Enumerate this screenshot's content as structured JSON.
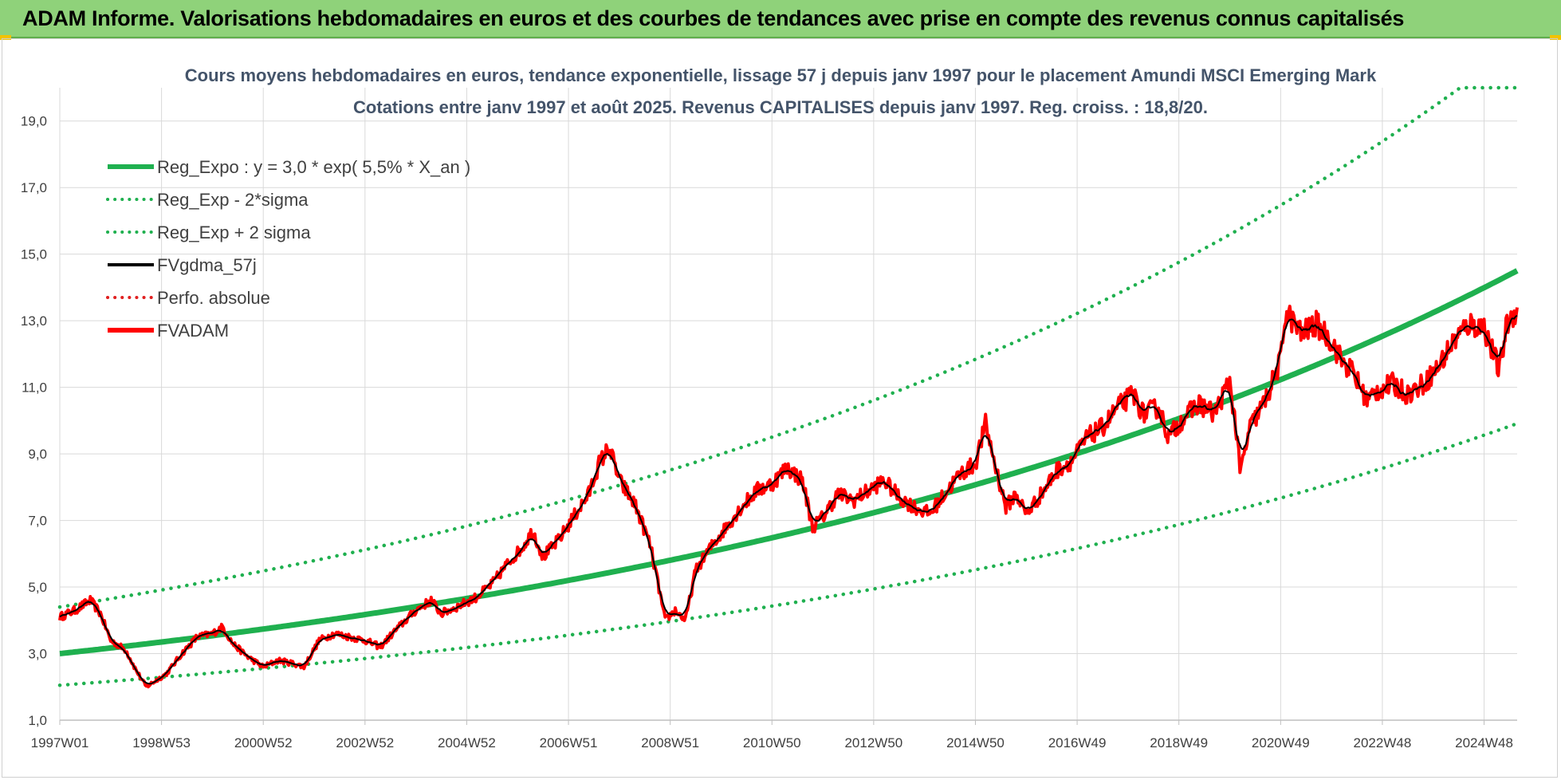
{
  "header": {
    "title": "ADAM Informe. Valorisations hebdomadaires en euros et des courbes de tendances avec prise en compte des revenus connus capitalisés"
  },
  "colors": {
    "banner": "#8fd27a",
    "reg_expo": "#1fb04f",
    "fvgdma": "#000000",
    "fvadam": "#ff0000",
    "perfo": "#e02020",
    "grid": "#d9d9d9"
  },
  "chart_data": {
    "type": "line",
    "title": "Cours moyens hebdomadaires en euros, tendance exponentielle, lissage 57 j depuis janv 1997 pour le placement Amundi MSCI Emerging Mark",
    "subtitle": "Cotations entre janv 1997 et août 2025. Revenus CAPITALISES depuis janv 1997. Reg. croiss. : 18,8/20.",
    "x_range": [
      1997.0,
      2025.65
    ],
    "ylim": [
      1.0,
      20.0
    ],
    "y_ticks": [
      "1,0",
      "3,0",
      "5,0",
      "7,0",
      "9,0",
      "11,0",
      "13,0",
      "15,0",
      "17,0",
      "19,0"
    ],
    "x_ticks": [
      {
        "label": "1997W01",
        "x": 1997.0
      },
      {
        "label": "1998W53",
        "x": 1999.0
      },
      {
        "label": "2000W52",
        "x": 2001.0
      },
      {
        "label": "2002W52",
        "x": 2003.0
      },
      {
        "label": "2004W52",
        "x": 2005.0
      },
      {
        "label": "2006W51",
        "x": 2007.0
      },
      {
        "label": "2008W51",
        "x": 2009.0
      },
      {
        "label": "2010W50",
        "x": 2011.0
      },
      {
        "label": "2012W50",
        "x": 2013.0
      },
      {
        "label": "2014W50",
        "x": 2015.0
      },
      {
        "label": "2016W49",
        "x": 2017.0
      },
      {
        "label": "2018W49",
        "x": 2019.0
      },
      {
        "label": "2020W49",
        "x": 2021.0
      },
      {
        "label": "2022W48",
        "x": 2023.0
      },
      {
        "label": "2024W48",
        "x": 2025.0
      }
    ],
    "legend_position": "top-left",
    "grid": true,
    "series": [
      {
        "name": "Reg_Expo : y = 3,0 * exp( 5,5% *  X_an )",
        "style": "solid-thick",
        "color": "#1fb04f",
        "a": 3.0,
        "rate": 0.055
      },
      {
        "name": "Reg_Exp - 2*sigma",
        "style": "dotted",
        "color": "#1fb04f",
        "a": 2.05,
        "rate": 0.055
      },
      {
        "name": "Reg_Exp + 2 sigma",
        "style": "dotted",
        "color": "#1fb04f",
        "a": 4.4,
        "rate": 0.055,
        "cap": 20.0
      },
      {
        "name": "FVgdma_57j",
        "style": "solid",
        "color": "#000000"
      },
      {
        "name": "Perfo. absolue",
        "style": "dotted",
        "color": "#e02020"
      },
      {
        "name": "FVADAM",
        "style": "solid-thick",
        "color": "#ff0000"
      }
    ],
    "fvadam_points": [
      [
        1997.0,
        4.1
      ],
      [
        1997.3,
        4.3
      ],
      [
        1997.6,
        4.6
      ],
      [
        1997.8,
        4.2
      ],
      [
        1998.0,
        3.4
      ],
      [
        1998.3,
        3.1
      ],
      [
        1998.5,
        2.5
      ],
      [
        1998.7,
        2.0
      ],
      [
        1998.9,
        2.2
      ],
      [
        1999.1,
        2.4
      ],
      [
        1999.4,
        3.0
      ],
      [
        1999.7,
        3.5
      ],
      [
        2000.0,
        3.6
      ],
      [
        2000.2,
        3.8
      ],
      [
        2000.4,
        3.3
      ],
      [
        2000.7,
        2.9
      ],
      [
        2001.0,
        2.6
      ],
      [
        2001.3,
        2.8
      ],
      [
        2001.6,
        2.7
      ],
      [
        2001.8,
        2.6
      ],
      [
        2002.1,
        3.4
      ],
      [
        2002.4,
        3.6
      ],
      [
        2002.7,
        3.5
      ],
      [
        2003.0,
        3.4
      ],
      [
        2003.3,
        3.2
      ],
      [
        2003.6,
        3.7
      ],
      [
        2004.0,
        4.3
      ],
      [
        2004.3,
        4.6
      ],
      [
        2004.5,
        4.2
      ],
      [
        2004.8,
        4.4
      ],
      [
        2005.2,
        4.7
      ],
      [
        2005.5,
        5.1
      ],
      [
        2005.8,
        5.7
      ],
      [
        2006.1,
        6.2
      ],
      [
        2006.3,
        6.7
      ],
      [
        2006.5,
        5.9
      ],
      [
        2006.8,
        6.4
      ],
      [
        2007.1,
        7.1
      ],
      [
        2007.4,
        7.8
      ],
      [
        2007.6,
        8.7
      ],
      [
        2007.8,
        9.2
      ],
      [
        2008.0,
        8.2
      ],
      [
        2008.3,
        7.5
      ],
      [
        2008.6,
        6.3
      ],
      [
        2008.8,
        4.8
      ],
      [
        2008.9,
        4.0
      ],
      [
        2009.1,
        4.3
      ],
      [
        2009.3,
        4.0
      ],
      [
        2009.5,
        5.5
      ],
      [
        2009.8,
        6.2
      ],
      [
        2010.1,
        6.8
      ],
      [
        2010.4,
        7.4
      ],
      [
        2010.7,
        7.9
      ],
      [
        2011.0,
        8.1
      ],
      [
        2011.3,
        8.6
      ],
      [
        2011.6,
        8.2
      ],
      [
        2011.8,
        6.8
      ],
      [
        2012.0,
        7.1
      ],
      [
        2012.3,
        7.8
      ],
      [
        2012.6,
        7.6
      ],
      [
        2012.9,
        7.9
      ],
      [
        2013.2,
        8.2
      ],
      [
        2013.5,
        7.7
      ],
      [
        2013.8,
        7.4
      ],
      [
        2014.1,
        7.2
      ],
      [
        2014.4,
        7.8
      ],
      [
        2014.7,
        8.4
      ],
      [
        2015.0,
        8.7
      ],
      [
        2015.2,
        9.9
      ],
      [
        2015.4,
        8.6
      ],
      [
        2015.6,
        7.4
      ],
      [
        2015.8,
        7.8
      ],
      [
        2016.0,
        7.2
      ],
      [
        2016.3,
        7.8
      ],
      [
        2016.6,
        8.5
      ],
      [
        2016.9,
        8.8
      ],
      [
        2017.2,
        9.5
      ],
      [
        2017.5,
        9.8
      ],
      [
        2017.8,
        10.4
      ],
      [
        2018.1,
        10.8
      ],
      [
        2018.3,
        10.2
      ],
      [
        2018.6,
        10.4
      ],
      [
        2018.8,
        9.5
      ],
      [
        2019.1,
        10.1
      ],
      [
        2019.4,
        10.5
      ],
      [
        2019.7,
        10.2
      ],
      [
        2020.0,
        11.2
      ],
      [
        2020.15,
        9.4
      ],
      [
        2020.2,
        8.4
      ],
      [
        2020.4,
        9.8
      ],
      [
        2020.7,
        10.6
      ],
      [
        2021.0,
        11.8
      ],
      [
        2021.1,
        13.3
      ],
      [
        2021.4,
        12.6
      ],
      [
        2021.7,
        12.9
      ],
      [
        2022.0,
        12.4
      ],
      [
        2022.2,
        11.8
      ],
      [
        2022.4,
        11.5
      ],
      [
        2022.7,
        10.6
      ],
      [
        2022.9,
        10.9
      ],
      [
        2023.2,
        11.1
      ],
      [
        2023.5,
        10.8
      ],
      [
        2023.8,
        11.1
      ],
      [
        2024.1,
        11.6
      ],
      [
        2024.4,
        12.4
      ],
      [
        2024.7,
        12.9
      ],
      [
        2025.0,
        12.8
      ],
      [
        2025.3,
        11.5
      ],
      [
        2025.45,
        12.9
      ],
      [
        2025.65,
        13.4
      ]
    ]
  }
}
